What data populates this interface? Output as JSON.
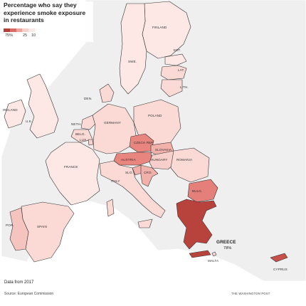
{
  "legend": {
    "title": "Percentage who say they experience smoke exposure in restaurants",
    "scale_colors": [
      "#b3403a",
      "#d96b66",
      "#eba39d",
      "#f5cfc9",
      "#fbe9e6"
    ],
    "tick_labels": [
      {
        "id": "high",
        "text": "75%"
      },
      {
        "id": "mid",
        "text": "25"
      },
      {
        "id": "low",
        "text": "10"
      }
    ]
  },
  "colors": {
    "sea": "#ffffff",
    "non_eu_land": "#efefef",
    "border": "#ffffff",
    "outline": "#333333"
  },
  "countries": {
    "finland": {
      "label": "FINLAND",
      "fill": "#fde8e5"
    },
    "sweden": {
      "label": "SWE.",
      "fill": "#fde8e5"
    },
    "estonia": {
      "label": "EST.",
      "fill": "#fde8e5"
    },
    "latvia": {
      "label": "LAT.",
      "fill": "#fbdad6"
    },
    "lithuania": {
      "label": "LITH.",
      "fill": "#fbdad6"
    },
    "denmark": {
      "label": "DEN.",
      "fill": "#fbdad6"
    },
    "ireland": {
      "label": "IRELAND",
      "fill": "#fde8e5"
    },
    "uk": {
      "label": "U.K.",
      "fill": "#fde8e5"
    },
    "netherlands": {
      "label": "NETH.",
      "fill": "#fbdad6"
    },
    "belgium": {
      "label": "BELG.",
      "fill": "#fbdad6"
    },
    "luxembourg": {
      "label": "LUX.",
      "fill": "#f8cfca"
    },
    "germany": {
      "label": "GERMANY",
      "fill": "#fbdad6"
    },
    "poland": {
      "label": "POLAND",
      "fill": "#fbdad6"
    },
    "czech": {
      "label": "CZECH REP.",
      "fill": "#e8857e"
    },
    "slovakia": {
      "label": "SLOVAKIA",
      "fill": "#f1b0aa"
    },
    "austria": {
      "label": "AUSTRIA",
      "fill": "#e8857e"
    },
    "hungary": {
      "label": "HUNGARY",
      "fill": "#f8cfca"
    },
    "romania": {
      "label": "ROMANIA",
      "fill": "#fbdad6"
    },
    "slovenia": {
      "label": "SLO.",
      "fill": "#f1b0aa"
    },
    "croatia": {
      "label": "CRO.",
      "fill": "#f1b0aa"
    },
    "france": {
      "label": "FRANCE",
      "fill": "#fde8e5"
    },
    "italy": {
      "label": "ITALY",
      "fill": "#fbdad6"
    },
    "bulgaria": {
      "label": "BULG.",
      "fill": "#e48079"
    },
    "greece": {
      "label": "GREECE",
      "value": "78%",
      "fill": "#b8433d"
    },
    "spain": {
      "label": "SPAIN",
      "fill": "#fbdad6"
    },
    "portugal": {
      "label": "POR.",
      "fill": "#f6c4be"
    },
    "malta": {
      "label": "MALTA",
      "fill": "#fbdad6"
    },
    "cyprus": {
      "label": "CYPRUS",
      "fill": "#c75049"
    }
  },
  "footer": {
    "note": "Data from 2017",
    "source": "Source: European Commission",
    "credit": "THE WASHINGTON POST"
  }
}
